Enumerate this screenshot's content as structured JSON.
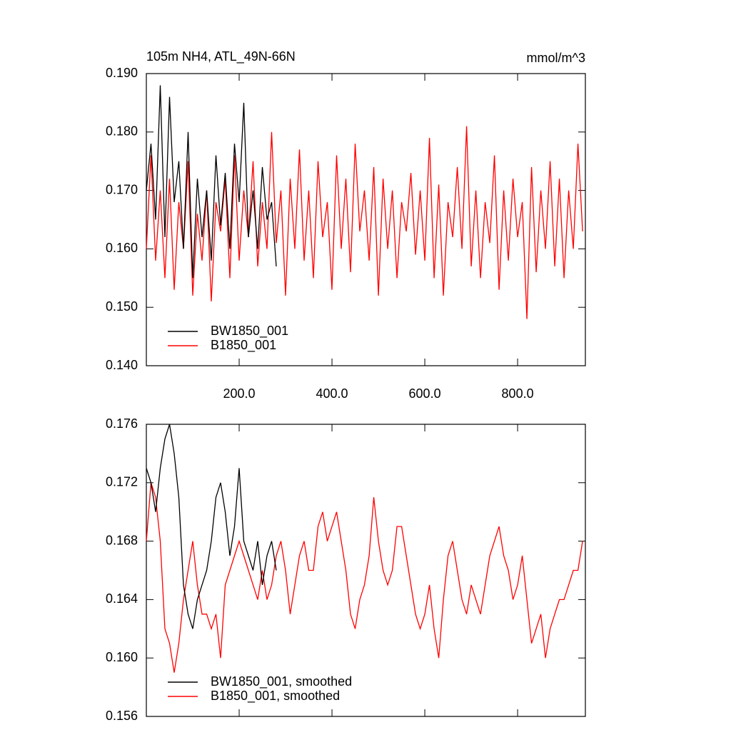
{
  "chart_data": [
    {
      "type": "line",
      "title": "105m NH4, ATL_49N-66N",
      "units": "mmol/m^3",
      "legend": "lower left",
      "xlim": [
        0,
        946
      ],
      "ylim": [
        0.14,
        0.19
      ],
      "xticks": [
        {
          "value": 200,
          "label": "200.0"
        },
        {
          "value": 400,
          "label": "400.0"
        },
        {
          "value": 600,
          "label": "600.0"
        },
        {
          "value": 800,
          "label": "800.0"
        }
      ],
      "yticks": [
        {
          "value": 0.14,
          "label": "0.140"
        },
        {
          "value": 0.15,
          "label": "0.150"
        },
        {
          "value": 0.16,
          "label": "0.160"
        },
        {
          "value": 0.17,
          "label": "0.170"
        },
        {
          "value": 0.18,
          "label": "0.180"
        },
        {
          "value": 0.19,
          "label": "0.190"
        }
      ],
      "series": [
        {
          "name": "B1850_001",
          "color": "#ff0000",
          "x": [
            0,
            10,
            20,
            30,
            40,
            50,
            60,
            70,
            80,
            90,
            100,
            110,
            120,
            130,
            140,
            150,
            160,
            170,
            180,
            190,
            200,
            210,
            220,
            230,
            240,
            250,
            260,
            270,
            280,
            290,
            300,
            310,
            320,
            330,
            340,
            350,
            360,
            370,
            380,
            390,
            400,
            410,
            420,
            430,
            440,
            450,
            460,
            470,
            480,
            490,
            500,
            510,
            520,
            530,
            540,
            550,
            560,
            570,
            580,
            590,
            600,
            610,
            620,
            630,
            640,
            650,
            660,
            670,
            680,
            690,
            700,
            710,
            720,
            730,
            740,
            750,
            760,
            770,
            780,
            790,
            800,
            810,
            820,
            830,
            840,
            850,
            860,
            870,
            880,
            890,
            900,
            910,
            920,
            930,
            940
          ],
          "values": [
            0.16,
            0.176,
            0.158,
            0.17,
            0.155,
            0.172,
            0.153,
            0.168,
            0.16,
            0.175,
            0.152,
            0.166,
            0.158,
            0.17,
            0.151,
            0.168,
            0.163,
            0.172,
            0.155,
            0.176,
            0.158,
            0.17,
            0.162,
            0.175,
            0.157,
            0.168,
            0.16,
            0.18,
            0.161,
            0.17,
            0.152,
            0.172,
            0.16,
            0.177,
            0.158,
            0.17,
            0.155,
            0.175,
            0.162,
            0.168,
            0.153,
            0.176,
            0.16,
            0.172,
            0.156,
            0.178,
            0.163,
            0.17,
            0.158,
            0.174,
            0.152,
            0.172,
            0.16,
            0.17,
            0.155,
            0.168,
            0.163,
            0.173,
            0.159,
            0.17,
            0.158,
            0.179,
            0.155,
            0.171,
            0.152,
            0.168,
            0.162,
            0.174,
            0.16,
            0.181,
            0.157,
            0.17,
            0.155,
            0.168,
            0.161,
            0.176,
            0.153,
            0.17,
            0.158,
            0.172,
            0.162,
            0.168,
            0.148,
            0.174,
            0.156,
            0.17,
            0.16,
            0.175,
            0.157,
            0.172,
            0.155,
            0.17,
            0.16,
            0.178,
            0.163
          ]
        },
        {
          "name": "BW1850_001",
          "color": "#000000",
          "x": [
            0,
            10,
            20,
            30,
            40,
            50,
            60,
            70,
            80,
            90,
            100,
            110,
            120,
            130,
            140,
            150,
            160,
            170,
            180,
            190,
            200,
            210,
            220,
            230,
            240,
            250,
            260,
            270,
            280
          ],
          "values": [
            0.17,
            0.178,
            0.165,
            0.188,
            0.162,
            0.186,
            0.168,
            0.175,
            0.16,
            0.18,
            0.155,
            0.172,
            0.162,
            0.17,
            0.158,
            0.176,
            0.164,
            0.173,
            0.16,
            0.178,
            0.168,
            0.185,
            0.162,
            0.17,
            0.16,
            0.174,
            0.165,
            0.168,
            0.157
          ]
        }
      ]
    },
    {
      "type": "line",
      "legend": "lower left",
      "xlim": [
        0,
        946
      ],
      "ylim": [
        0.156,
        0.176
      ],
      "yticks": [
        {
          "value": 0.156,
          "label": "0.156"
        },
        {
          "value": 0.16,
          "label": "0.160"
        },
        {
          "value": 0.164,
          "label": "0.164"
        },
        {
          "value": 0.168,
          "label": "0.168"
        },
        {
          "value": 0.172,
          "label": "0.172"
        },
        {
          "value": 0.176,
          "label": "0.176"
        }
      ],
      "series": [
        {
          "name": "B1850_001, smoothed",
          "color": "#ff0000",
          "x": [
            0,
            10,
            20,
            30,
            40,
            50,
            60,
            70,
            80,
            90,
            100,
            110,
            120,
            130,
            140,
            150,
            160,
            170,
            180,
            190,
            200,
            210,
            220,
            230,
            240,
            250,
            260,
            270,
            280,
            290,
            300,
            310,
            320,
            330,
            340,
            350,
            360,
            370,
            380,
            390,
            400,
            410,
            420,
            430,
            440,
            450,
            460,
            470,
            480,
            490,
            500,
            510,
            520,
            530,
            540,
            550,
            560,
            570,
            580,
            590,
            600,
            610,
            620,
            630,
            640,
            650,
            660,
            670,
            680,
            690,
            700,
            710,
            720,
            730,
            740,
            750,
            760,
            770,
            780,
            790,
            800,
            810,
            820,
            830,
            840,
            850,
            860,
            870,
            880,
            890,
            900,
            910,
            920,
            930,
            940
          ],
          "values": [
            0.168,
            0.172,
            0.171,
            0.168,
            0.162,
            0.161,
            0.159,
            0.161,
            0.164,
            0.166,
            0.168,
            0.165,
            0.163,
            0.163,
            0.162,
            0.163,
            0.16,
            0.165,
            0.166,
            0.167,
            0.168,
            0.167,
            0.166,
            0.165,
            0.164,
            0.166,
            0.164,
            0.165,
            0.167,
            0.168,
            0.166,
            0.163,
            0.165,
            0.167,
            0.168,
            0.166,
            0.166,
            0.169,
            0.17,
            0.168,
            0.169,
            0.17,
            0.168,
            0.166,
            0.163,
            0.162,
            0.164,
            0.165,
            0.167,
            0.171,
            0.168,
            0.166,
            0.165,
            0.166,
            0.169,
            0.169,
            0.167,
            0.165,
            0.163,
            0.162,
            0.163,
            0.165,
            0.162,
            0.16,
            0.164,
            0.167,
            0.168,
            0.166,
            0.164,
            0.163,
            0.165,
            0.164,
            0.163,
            0.165,
            0.167,
            0.168,
            0.169,
            0.167,
            0.166,
            0.164,
            0.165,
            0.167,
            0.164,
            0.161,
            0.162,
            0.163,
            0.16,
            0.162,
            0.163,
            0.164,
            0.164,
            0.165,
            0.166,
            0.166,
            0.168
          ]
        },
        {
          "name": "BW1850_001, smoothed",
          "color": "#000000",
          "x": [
            0,
            10,
            20,
            30,
            40,
            50,
            60,
            70,
            80,
            90,
            100,
            110,
            120,
            130,
            140,
            150,
            160,
            170,
            180,
            190,
            200,
            210,
            220,
            230,
            240,
            250,
            260,
            270,
            280
          ],
          "values": [
            0.173,
            0.172,
            0.17,
            0.173,
            0.175,
            0.176,
            0.174,
            0.171,
            0.165,
            0.163,
            0.162,
            0.164,
            0.165,
            0.166,
            0.168,
            0.171,
            0.172,
            0.17,
            0.167,
            0.169,
            0.173,
            0.168,
            0.167,
            0.166,
            0.168,
            0.165,
            0.167,
            0.168,
            0.166
          ]
        }
      ]
    }
  ]
}
